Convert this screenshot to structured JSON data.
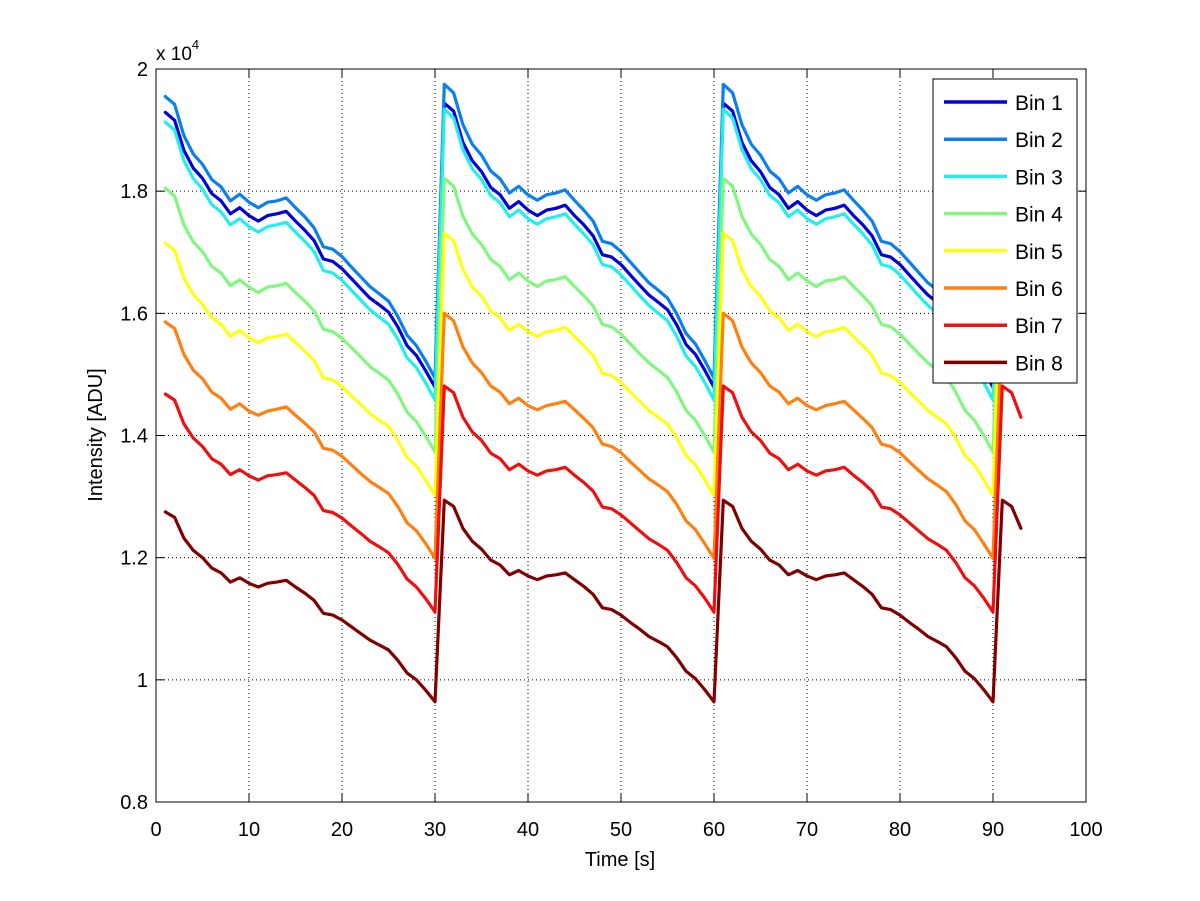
{
  "chart_data": {
    "type": "line",
    "title": "",
    "xlabel": "Time [s]",
    "ylabel": "Intensity [ADU]",
    "y_exponent_label": "x 10",
    "y_exponent_power": "4",
    "y_scale": 10000,
    "xlim": [
      0,
      100
    ],
    "ylim": [
      0.8,
      2.0
    ],
    "xticks": [
      0,
      10,
      20,
      30,
      40,
      50,
      60,
      70,
      80,
      90,
      100
    ],
    "xtick_labels": [
      "0",
      "10",
      "20",
      "30",
      "40",
      "50",
      "60",
      "70",
      "80",
      "90",
      "100"
    ],
    "yticks": [
      0.8,
      1.0,
      1.2,
      1.4,
      1.6,
      1.8,
      2.0
    ],
    "ytick_labels": [
      "0.8",
      "1",
      "1.2",
      "1.4",
      "1.6",
      "1.8",
      "2"
    ],
    "grid": true,
    "grid_style": "dotted",
    "legend_position": "top-right",
    "x": [
      1,
      2,
      3,
      4,
      5,
      6,
      7,
      8,
      9,
      10,
      11,
      12,
      13,
      14,
      15,
      16,
      17,
      18,
      19,
      20,
      21,
      22,
      23,
      24,
      25,
      26,
      27,
      28,
      29,
      30,
      31,
      32,
      33,
      34,
      35,
      36,
      37,
      38,
      39,
      40,
      41,
      42,
      43,
      44,
      45,
      46,
      47,
      48,
      49,
      50,
      51,
      52,
      53,
      54,
      55,
      56,
      57,
      58,
      59,
      60,
      61,
      62,
      63,
      64,
      65,
      66,
      67,
      68,
      69,
      70,
      71,
      72,
      73,
      74,
      75,
      76,
      77,
      78,
      79,
      80,
      81,
      82,
      83,
      84,
      85,
      86,
      87,
      88,
      89,
      90,
      91,
      92,
      93
    ],
    "series": [
      {
        "name": "Bin 1",
        "color": "#0000dd",
        "values": [
          1.929,
          1.916,
          1.867,
          1.838,
          1.821,
          1.796,
          1.784,
          1.763,
          1.773,
          1.76,
          1.751,
          1.76,
          1.763,
          1.767,
          1.751,
          1.736,
          1.719,
          1.689,
          1.685,
          1.673,
          1.657,
          1.641,
          1.625,
          1.614,
          1.602,
          1.578,
          1.547,
          1.531,
          1.506,
          1.479,
          1.944,
          1.931,
          1.88,
          1.85,
          1.832,
          1.806,
          1.794,
          1.772,
          1.783,
          1.769,
          1.76,
          1.769,
          1.772,
          1.777,
          1.76,
          1.745,
          1.727,
          1.696,
          1.692,
          1.68,
          1.663,
          1.646,
          1.63,
          1.618,
          1.606,
          1.581,
          1.549,
          1.533,
          1.507,
          1.479,
          1.944,
          1.931,
          1.88,
          1.85,
          1.832,
          1.806,
          1.794,
          1.772,
          1.783,
          1.769,
          1.76,
          1.769,
          1.772,
          1.777,
          1.76,
          1.745,
          1.727,
          1.696,
          1.692,
          1.68,
          1.663,
          1.646,
          1.63,
          1.618,
          1.606,
          1.581,
          1.549,
          1.533,
          1.507,
          1.479,
          1.944,
          1.931,
          1.88
        ]
      },
      {
        "name": "Bin 2",
        "color": "#0a80f0",
        "values": [
          1.955,
          1.942,
          1.891,
          1.861,
          1.844,
          1.819,
          1.807,
          1.784,
          1.795,
          1.782,
          1.773,
          1.782,
          1.784,
          1.789,
          1.773,
          1.758,
          1.74,
          1.709,
          1.705,
          1.693,
          1.676,
          1.66,
          1.644,
          1.632,
          1.62,
          1.595,
          1.564,
          1.547,
          1.522,
          1.494,
          1.975,
          1.961,
          1.909,
          1.877,
          1.859,
          1.833,
          1.82,
          1.797,
          1.808,
          1.794,
          1.785,
          1.794,
          1.797,
          1.802,
          1.785,
          1.769,
          1.751,
          1.718,
          1.714,
          1.701,
          1.684,
          1.667,
          1.65,
          1.638,
          1.625,
          1.599,
          1.567,
          1.55,
          1.523,
          1.494,
          1.975,
          1.961,
          1.909,
          1.877,
          1.859,
          1.833,
          1.82,
          1.797,
          1.808,
          1.794,
          1.785,
          1.794,
          1.797,
          1.802,
          1.785,
          1.769,
          1.751,
          1.718,
          1.714,
          1.701,
          1.684,
          1.667,
          1.65,
          1.638,
          1.625,
          1.599,
          1.567,
          1.55,
          1.523,
          1.494,
          1.975,
          1.961,
          1.909
        ]
      },
      {
        "name": "Bin 3",
        "color": "#22eeee",
        "values": [
          1.913,
          1.9,
          1.85,
          1.821,
          1.803,
          1.778,
          1.766,
          1.745,
          1.755,
          1.742,
          1.733,
          1.742,
          1.745,
          1.749,
          1.733,
          1.718,
          1.701,
          1.67,
          1.666,
          1.654,
          1.638,
          1.622,
          1.606,
          1.594,
          1.582,
          1.558,
          1.527,
          1.511,
          1.486,
          1.458,
          1.934,
          1.92,
          1.868,
          1.837,
          1.819,
          1.793,
          1.781,
          1.758,
          1.769,
          1.755,
          1.746,
          1.755,
          1.758,
          1.763,
          1.746,
          1.73,
          1.712,
          1.68,
          1.676,
          1.663,
          1.646,
          1.629,
          1.613,
          1.6,
          1.588,
          1.562,
          1.53,
          1.513,
          1.487,
          1.458,
          1.934,
          1.92,
          1.868,
          1.837,
          1.819,
          1.793,
          1.781,
          1.758,
          1.769,
          1.755,
          1.746,
          1.755,
          1.758,
          1.763,
          1.746,
          1.73,
          1.712,
          1.68,
          1.676,
          1.663,
          1.646,
          1.629,
          1.613,
          1.6,
          1.588,
          1.562,
          1.53,
          1.513,
          1.487,
          1.458,
          1.934,
          1.92,
          1.868
        ]
      },
      {
        "name": "Bin 4",
        "color": "#80f880",
        "values": [
          1.805,
          1.792,
          1.745,
          1.717,
          1.701,
          1.677,
          1.666,
          1.645,
          1.655,
          1.643,
          1.634,
          1.643,
          1.645,
          1.649,
          1.634,
          1.62,
          1.604,
          1.574,
          1.57,
          1.559,
          1.544,
          1.529,
          1.513,
          1.502,
          1.491,
          1.468,
          1.438,
          1.423,
          1.399,
          1.373,
          1.821,
          1.808,
          1.759,
          1.73,
          1.713,
          1.688,
          1.677,
          1.655,
          1.666,
          1.653,
          1.644,
          1.653,
          1.655,
          1.66,
          1.644,
          1.629,
          1.612,
          1.582,
          1.578,
          1.566,
          1.55,
          1.534,
          1.519,
          1.507,
          1.495,
          1.471,
          1.441,
          1.425,
          1.4,
          1.373,
          1.821,
          1.808,
          1.759,
          1.73,
          1.713,
          1.688,
          1.677,
          1.655,
          1.666,
          1.653,
          1.644,
          1.653,
          1.655,
          1.66,
          1.644,
          1.629,
          1.612,
          1.582,
          1.578,
          1.566,
          1.55,
          1.534,
          1.519,
          1.507,
          1.495,
          1.471,
          1.441,
          1.425,
          1.4,
          1.373,
          1.821,
          1.808,
          1.759
        ]
      },
      {
        "name": "Bin 5",
        "color": "#ffff10",
        "values": [
          1.715,
          1.703,
          1.658,
          1.631,
          1.615,
          1.593,
          1.582,
          1.562,
          1.572,
          1.56,
          1.552,
          1.56,
          1.562,
          1.566,
          1.552,
          1.538,
          1.523,
          1.494,
          1.491,
          1.48,
          1.465,
          1.451,
          1.436,
          1.425,
          1.415,
          1.392,
          1.364,
          1.35,
          1.327,
          1.302,
          1.731,
          1.719,
          1.672,
          1.644,
          1.628,
          1.604,
          1.593,
          1.572,
          1.582,
          1.57,
          1.562,
          1.57,
          1.572,
          1.577,
          1.562,
          1.547,
          1.531,
          1.502,
          1.498,
          1.487,
          1.471,
          1.456,
          1.441,
          1.43,
          1.419,
          1.396,
          1.367,
          1.352,
          1.328,
          1.302,
          1.731,
          1.719,
          1.672,
          1.644,
          1.628,
          1.604,
          1.593,
          1.572,
          1.582,
          1.57,
          1.562,
          1.57,
          1.572,
          1.577,
          1.562,
          1.547,
          1.531,
          1.502,
          1.498,
          1.487,
          1.471,
          1.456,
          1.441,
          1.43,
          1.419,
          1.396,
          1.367,
          1.352,
          1.328,
          1.302,
          1.731,
          1.719,
          1.672
        ]
      },
      {
        "name": "Bin 6",
        "color": "#ff8010",
        "values": [
          1.586,
          1.575,
          1.533,
          1.507,
          1.493,
          1.471,
          1.461,
          1.443,
          1.452,
          1.44,
          1.433,
          1.44,
          1.443,
          1.447,
          1.433,
          1.42,
          1.406,
          1.379,
          1.376,
          1.366,
          1.352,
          1.338,
          1.325,
          1.315,
          1.305,
          1.284,
          1.257,
          1.244,
          1.223,
          1.199,
          1.6,
          1.588,
          1.545,
          1.519,
          1.503,
          1.481,
          1.471,
          1.452,
          1.461,
          1.449,
          1.442,
          1.449,
          1.452,
          1.456,
          1.442,
          1.428,
          1.413,
          1.386,
          1.382,
          1.372,
          1.357,
          1.343,
          1.329,
          1.319,
          1.308,
          1.287,
          1.26,
          1.246,
          1.223,
          1.199,
          1.6,
          1.588,
          1.545,
          1.519,
          1.503,
          1.481,
          1.471,
          1.452,
          1.461,
          1.449,
          1.442,
          1.449,
          1.452,
          1.456,
          1.442,
          1.428,
          1.413,
          1.386,
          1.382,
          1.372,
          1.357,
          1.343,
          1.329,
          1.319,
          1.308,
          1.287,
          1.26,
          1.246,
          1.223,
          1.199,
          1.6,
          1.588,
          1.545
        ]
      },
      {
        "name": "Bin 7",
        "color": "#ee1010",
        "values": [
          1.468,
          1.458,
          1.419,
          1.396,
          1.382,
          1.362,
          1.353,
          1.336,
          1.344,
          1.334,
          1.327,
          1.334,
          1.336,
          1.339,
          1.327,
          1.315,
          1.302,
          1.277,
          1.274,
          1.265,
          1.252,
          1.24,
          1.227,
          1.218,
          1.208,
          1.189,
          1.165,
          1.152,
          1.133,
          1.111,
          1.481,
          1.47,
          1.43,
          1.406,
          1.392,
          1.371,
          1.362,
          1.344,
          1.353,
          1.342,
          1.335,
          1.342,
          1.344,
          1.348,
          1.335,
          1.323,
          1.309,
          1.283,
          1.28,
          1.27,
          1.257,
          1.244,
          1.231,
          1.222,
          1.212,
          1.192,
          1.167,
          1.154,
          1.134,
          1.111,
          1.481,
          1.47,
          1.43,
          1.406,
          1.392,
          1.371,
          1.362,
          1.344,
          1.353,
          1.342,
          1.335,
          1.342,
          1.344,
          1.348,
          1.335,
          1.323,
          1.309,
          1.283,
          1.28,
          1.27,
          1.257,
          1.244,
          1.231,
          1.222,
          1.212,
          1.192,
          1.167,
          1.154,
          1.134,
          1.111,
          1.481,
          1.47,
          1.43
        ]
      },
      {
        "name": "Bin 8",
        "color": "#800000",
        "values": [
          1.275,
          1.266,
          1.232,
          1.212,
          1.2,
          1.183,
          1.175,
          1.16,
          1.167,
          1.158,
          1.152,
          1.158,
          1.16,
          1.163,
          1.152,
          1.142,
          1.13,
          1.109,
          1.106,
          1.098,
          1.087,
          1.076,
          1.065,
          1.057,
          1.049,
          1.032,
          1.011,
          1.0,
          0.983,
          0.964,
          1.294,
          1.284,
          1.248,
          1.227,
          1.214,
          1.196,
          1.188,
          1.172,
          1.179,
          1.17,
          1.164,
          1.17,
          1.172,
          1.175,
          1.164,
          1.153,
          1.14,
          1.118,
          1.115,
          1.106,
          1.094,
          1.083,
          1.071,
          1.063,
          1.054,
          1.036,
          1.014,
          1.002,
          0.984,
          0.964,
          1.294,
          1.284,
          1.248,
          1.227,
          1.214,
          1.196,
          1.188,
          1.172,
          1.179,
          1.17,
          1.164,
          1.17,
          1.172,
          1.175,
          1.164,
          1.153,
          1.14,
          1.118,
          1.115,
          1.106,
          1.094,
          1.083,
          1.071,
          1.063,
          1.054,
          1.036,
          1.014,
          1.002,
          0.984,
          0.964,
          1.294,
          1.284,
          1.248
        ]
      }
    ]
  }
}
